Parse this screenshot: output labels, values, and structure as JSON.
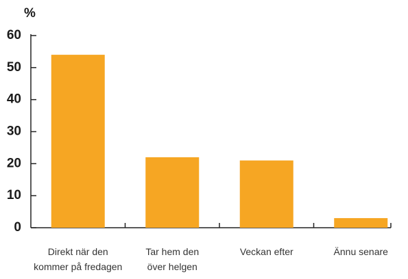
{
  "chart_data": {
    "type": "bar",
    "y_label": "%",
    "categories": [
      "Direkt när den\nkommer på fredagen",
      "Tar hem den\növer helgen",
      "Veckan efter",
      "Ännu senare"
    ],
    "values": [
      54,
      22,
      21,
      3
    ],
    "color": "#f6a623",
    "ylim": [
      0,
      60
    ],
    "yticks": [
      0,
      10,
      20,
      30,
      40,
      50,
      60
    ],
    "grid": false
  }
}
